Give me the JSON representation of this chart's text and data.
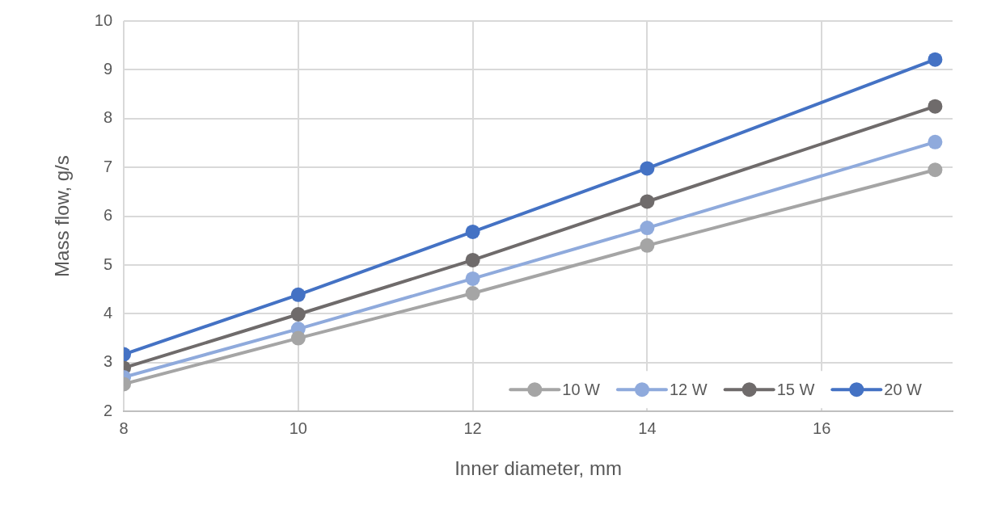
{
  "chart_data": {
    "type": "line",
    "xlabel": "Inner diameter, mm",
    "ylabel": "Mass flow, g/s",
    "x": [
      8,
      10,
      12,
      14,
      17.3
    ],
    "series": [
      {
        "name": "10 W",
        "color": "#a5a5a5",
        "values": [
          2.56,
          3.5,
          4.42,
          5.4,
          6.95
        ]
      },
      {
        "name": "12 W",
        "color": "#8faadc",
        "values": [
          2.7,
          3.69,
          4.72,
          5.76,
          7.52
        ]
      },
      {
        "name": "15 W",
        "color": "#6f6b6b",
        "values": [
          2.89,
          3.99,
          5.1,
          6.3,
          8.25
        ]
      },
      {
        "name": "20 W",
        "color": "#4472c4",
        "values": [
          3.17,
          4.39,
          5.68,
          6.98,
          9.21
        ]
      }
    ],
    "xlim": [
      8,
      17.5
    ],
    "xticks": [
      8,
      10,
      12,
      14,
      16
    ],
    "ylim": [
      2,
      10
    ],
    "yticks": [
      2,
      3,
      4,
      5,
      6,
      7,
      8,
      9,
      10
    ],
    "grid": true,
    "legend": "bottom right",
    "marker": "circle",
    "line_style": "solid"
  }
}
